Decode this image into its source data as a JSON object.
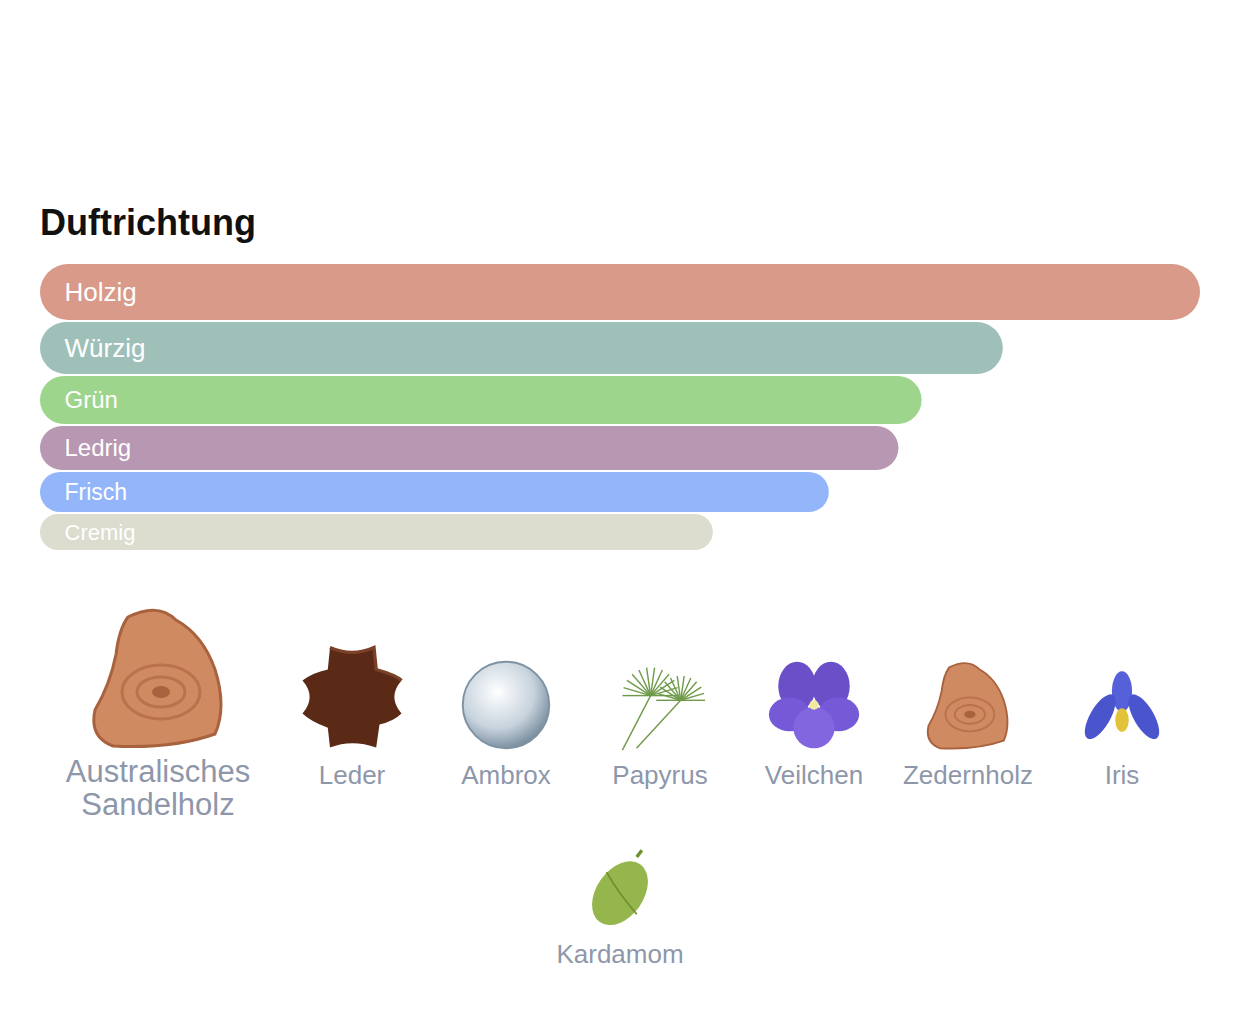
{
  "chart_data": {
    "type": "bar",
    "title": "Duftrichtung",
    "orientation": "horizontal",
    "categories": [
      "Holzig",
      "Würzig",
      "Grün",
      "Ledrig",
      "Frisch",
      "Cremig"
    ],
    "values": [
      100,
      83,
      76,
      74,
      68,
      58
    ],
    "colors": [
      "#d99a8a",
      "#9fc0b9",
      "#9dd58c",
      "#b797b1",
      "#93b6fa",
      "#dcdccf"
    ],
    "xlim": [
      0,
      100
    ],
    "tick_labels": false
  },
  "notes": [
    "Australisches Sandelholz",
    "Leder",
    "Ambrox",
    "Papyrus",
    "Veilchen",
    "Zedernholz",
    "Iris",
    "Kardamom"
  ]
}
